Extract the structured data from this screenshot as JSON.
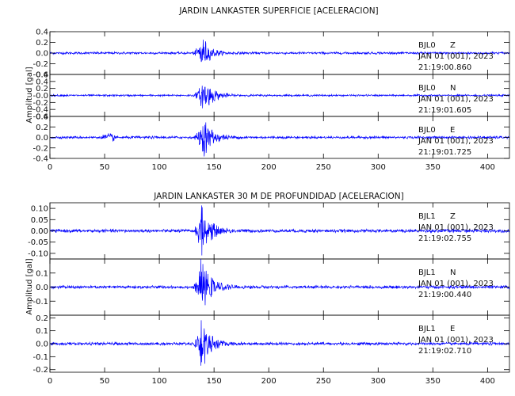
{
  "chart_data": [
    {
      "type": "line",
      "title": "JARDIN LANKASTER SUPERFICIE [ACELERACION]",
      "ylabel": "Amplitud [gal]",
      "xlim": [
        0,
        420
      ],
      "xticks": [
        0,
        50,
        100,
        150,
        200,
        250,
        300,
        350,
        400
      ],
      "series_color": "#0000ff",
      "panels": [
        {
          "station": "BJL0",
          "component": "Z",
          "date": "JAN 01 (001), 2023",
          "time": "21:19:00.860",
          "ylim": [
            -0.4,
            0.4
          ],
          "yticks": [
            -0.4,
            -0.2,
            0.0,
            0.2,
            0.4
          ],
          "ytick_labels": [
            "-0.4",
            "-0.2",
            "0.0",
            "0.2",
            "0.4"
          ],
          "noise": 0.018,
          "event_start": 130,
          "event_peak": 138,
          "peak_amplitude": 0.3,
          "decay": 7,
          "precursor": false
        },
        {
          "station": "BJL0",
          "component": "N",
          "date": "JAN 01 (001), 2023",
          "time": "21:19:01.605",
          "ylim": [
            -0.6,
            0.6
          ],
          "yticks": [
            -0.6,
            -0.4,
            -0.2,
            0.0,
            0.2,
            0.4,
            0.6
          ],
          "ytick_labels": [
            "-0.6",
            "-0.4",
            "-0.2",
            "-0.0",
            "0.2",
            "0.4",
            "0.6"
          ],
          "noise": 0.022,
          "event_start": 130,
          "event_peak": 140,
          "peak_amplitude": 0.45,
          "decay": 8,
          "precursor": false
        },
        {
          "station": "BJL0",
          "component": "E",
          "date": "JAN 01 (001), 2023",
          "time": "21:19:01.725",
          "ylim": [
            -0.4,
            0.4
          ],
          "yticks": [
            -0.4,
            -0.2,
            0.0,
            0.2,
            0.4
          ],
          "ytick_labels": [
            "-0.4",
            "-0.2",
            "0.0",
            "0.2",
            "0.4"
          ],
          "noise": 0.02,
          "event_start": 130,
          "event_peak": 140,
          "peak_amplitude": 0.32,
          "decay": 8,
          "precursor": true
        }
      ]
    },
    {
      "type": "line",
      "title": "JARDIN LANKASTER 30 M DE PROFUNDIDAD [ACELERACION]",
      "ylabel": "Amplitud [gal]",
      "xlim": [
        0,
        420
      ],
      "xticks": [
        0,
        50,
        100,
        150,
        200,
        250,
        300,
        350,
        400
      ],
      "series_color": "#0000ff",
      "panels": [
        {
          "station": "BJL1",
          "component": "Z",
          "date": "JAN 01 (001), 2023",
          "time": "21:19:02.755",
          "ylim": [
            -0.125,
            0.125
          ],
          "yticks": [
            -0.1,
            -0.05,
            0.0,
            0.05,
            0.1
          ],
          "ytick_labels": [
            "-0.10",
            "-0.05",
            "0.00",
            "0.05",
            "0.10"
          ],
          "noise": 0.006,
          "event_start": 130,
          "event_peak": 138,
          "peak_amplitude": 0.095,
          "decay": 8,
          "precursor": false
        },
        {
          "station": "BJL1",
          "component": "N",
          "date": "JAN 01 (001), 2023",
          "time": "21:19:00.440",
          "ylim": [
            -0.2,
            0.2
          ],
          "yticks": [
            -0.1,
            0.0,
            0.1
          ],
          "ytick_labels": [
            "-0.1",
            "0.0",
            "0.1"
          ],
          "noise": 0.009,
          "event_start": 130,
          "event_peak": 138,
          "peak_amplitude": 0.16,
          "decay": 8,
          "precursor": false
        },
        {
          "station": "BJL1",
          "component": "E",
          "date": "JAN 01 (001), 2023",
          "time": "21:19:02.710",
          "ylim": [
            -0.22,
            0.22
          ],
          "yticks": [
            -0.2,
            -0.1,
            0.0,
            0.1,
            0.2
          ],
          "ytick_labels": [
            "-0.2",
            "-0.1",
            "0.0",
            "0.1",
            "0.2"
          ],
          "noise": 0.009,
          "event_start": 130,
          "event_peak": 138,
          "peak_amplitude": 0.2,
          "decay": 7,
          "precursor": false
        }
      ]
    }
  ]
}
